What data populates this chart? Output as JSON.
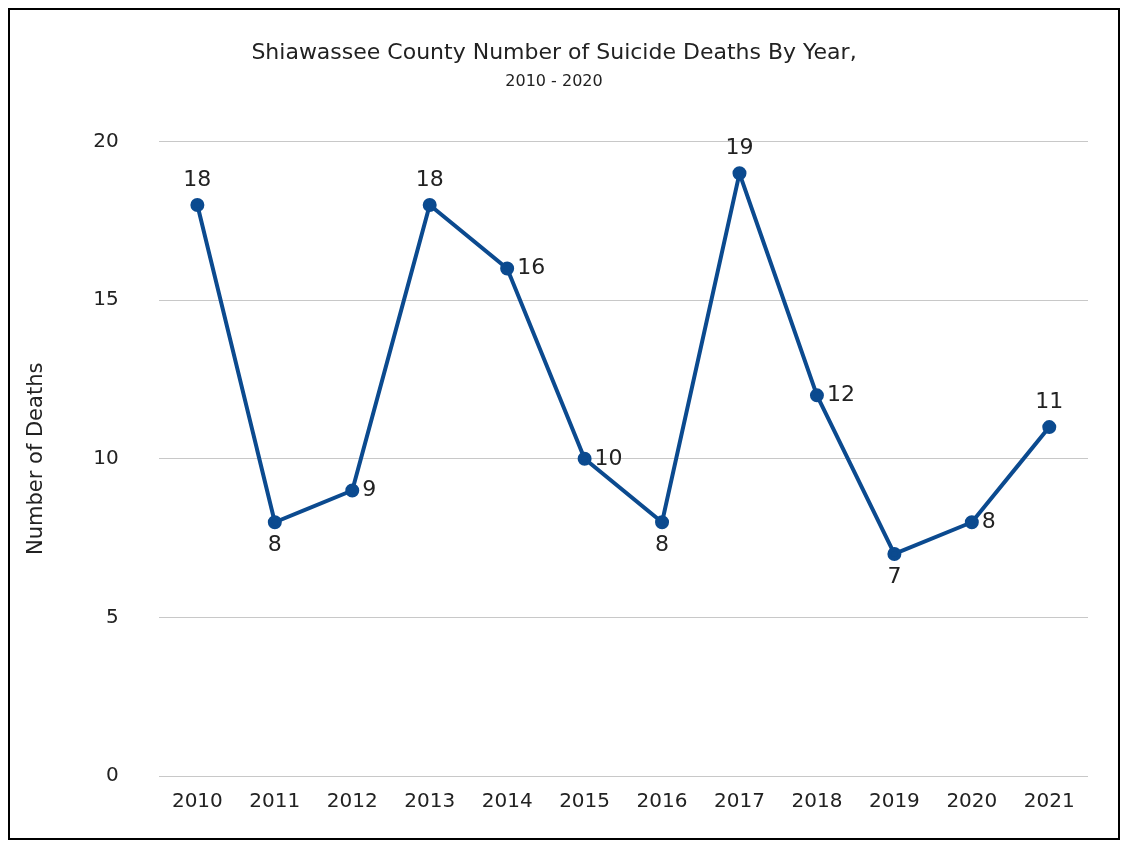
{
  "chart_data": {
    "type": "line",
    "title": "Shiawassee County Number of Suicide Deaths By Year,",
    "subtitle": "2010 - 2020",
    "ylabel": "Number of Deaths",
    "categories": [
      "2010",
      "2011",
      "2012",
      "2013",
      "2014",
      "2015",
      "2016",
      "2017",
      "2018",
      "2019",
      "2020",
      "2021"
    ],
    "series": [
      {
        "color": "#0b4a8f",
        "values": [
          18,
          8,
          9,
          18,
          16,
          10,
          8,
          19,
          12,
          7,
          8,
          11
        ]
      }
    ],
    "ylim": [
      0,
      20
    ],
    "yticks": [
      0,
      5,
      10,
      15,
      20
    ],
    "grid": "y",
    "legend": false,
    "marker": "circle",
    "line_style": "solid",
    "data_labels": true
  }
}
